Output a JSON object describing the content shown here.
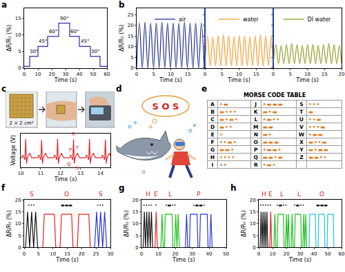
{
  "chart_data": [
    {
      "panel": "a",
      "type": "line",
      "line_style": "step",
      "grid": false,
      "x_label": "Time (s)",
      "y_label": "ΔR/R₀ (%)",
      "xlim": [
        0,
        60
      ],
      "xticks": [
        0,
        10,
        20,
        30,
        40,
        50,
        60
      ],
      "ylim": [
        0,
        18
      ],
      "yticks": [
        0,
        5,
        10,
        15
      ],
      "series": [
        {
          "color": "#2b2bb0",
          "x": [
            0,
            4,
            10,
            17,
            25,
            33,
            40,
            48,
            55,
            60
          ],
          "values": [
            0.5,
            3.5,
            6.5,
            9.5,
            13.5,
            9.5,
            6.5,
            3.5,
            0.5,
            0.5
          ]
        }
      ],
      "annotations": [
        {
          "text": "30°",
          "x": 7,
          "y": 3.5
        },
        {
          "text": "45°",
          "x": 13.5,
          "y": 6.5
        },
        {
          "text": "60°",
          "x": 21,
          "y": 9.5
        },
        {
          "text": "90°",
          "x": 29,
          "y": 13.5
        },
        {
          "text": "60°",
          "x": 36.5,
          "y": 9.5
        },
        {
          "text": "45°",
          "x": 44,
          "y": 6.5
        },
        {
          "text": "30°",
          "x": 51.5,
          "y": 3.5
        }
      ]
    },
    {
      "panel": "b",
      "type": "line",
      "line_style": "smooth",
      "grid": false,
      "legend": "top",
      "x_label": "Time (s)",
      "y_label": "ΔR/R₀ (%)",
      "xlim": [
        0,
        20
      ],
      "ylim": [
        0,
        28
      ],
      "yticks": [
        0,
        5,
        10,
        15,
        20,
        25
      ],
      "series": [
        {
          "name": "air",
          "color": "#1c2a8c",
          "xticks": [
            0,
            5,
            10,
            15
          ],
          "x": [
            0,
            0.8,
            1.65,
            2.45,
            3.3,
            4.1,
            4.95,
            5.75,
            6.6,
            7.4,
            8.25,
            9.05,
            9.9,
            10.7,
            11.55,
            12.35,
            13.2,
            14.0,
            14.85,
            15.65,
            16.5,
            17.3,
            18.15,
            18.95,
            19.8
          ],
          "values": [
            0,
            21,
            0,
            21.5,
            0,
            21,
            0,
            21,
            0,
            21.5,
            0,
            21,
            0,
            21,
            0,
            21,
            0,
            21.5,
            0,
            21,
            0,
            21,
            0,
            21,
            0
          ]
        },
        {
          "name": "water",
          "color": "#f29a2e",
          "xticks": [
            0,
            5,
            10,
            15
          ],
          "x": [
            0,
            0.75,
            1.55,
            2.3,
            3.1,
            3.85,
            4.65,
            5.4,
            6.2,
            6.95,
            7.75,
            8.5,
            9.3,
            10.05,
            10.85,
            11.6,
            12.4,
            13.15,
            13.95,
            14.7,
            15.5,
            16.25,
            17.05,
            17.8,
            18.6,
            19.35,
            20
          ],
          "values": [
            1,
            15,
            1,
            14.5,
            1,
            15,
            1,
            15.5,
            1,
            15,
            1,
            14.5,
            1,
            15,
            1,
            15,
            1,
            14.5,
            1,
            15,
            1,
            15.5,
            1,
            15,
            1,
            14.5,
            1
          ]
        },
        {
          "name": "DI water",
          "color": "#8c9a1e",
          "xticks": [
            0,
            5,
            10,
            15,
            20
          ],
          "x": [
            0,
            0.75,
            1.55,
            2.3,
            3.1,
            3.85,
            4.65,
            5.4,
            6.2,
            6.95,
            7.75,
            8.5,
            9.3,
            10.05,
            10.85,
            11.6,
            12.4,
            13.15,
            13.95,
            14.7,
            15.5,
            16.25,
            17.05,
            17.8,
            18.6,
            19.35,
            20
          ],
          "values": [
            2,
            11,
            2,
            10.5,
            2,
            11,
            2,
            11.5,
            2,
            11,
            2,
            10.5,
            2,
            11,
            2,
            11,
            2,
            10.5,
            2,
            11,
            2,
            11.5,
            2,
            11,
            2,
            10.5,
            2
          ]
        }
      ]
    },
    {
      "panel": "c",
      "type": "line",
      "line_style": "solid",
      "grid": false,
      "tick_labels": "x",
      "x_label": "Time (s)",
      "y_label": "Voltage (V)",
      "xlim": [
        10,
        14.5
      ],
      "xticks": [
        10,
        11,
        12,
        13,
        14
      ],
      "ylim": [
        -0.5,
        1.3
      ],
      "yticks": [],
      "series": [
        {
          "color": "#e0262a",
          "x": [
            10.0,
            10.05,
            10.1,
            10.15,
            10.21,
            10.25,
            10.29,
            10.33,
            10.45,
            10.55,
            10.85,
            10.9,
            10.95,
            11.01,
            11.05,
            11.09,
            11.13,
            11.25,
            11.35,
            11.65,
            11.7,
            11.75,
            11.81,
            11.85,
            11.89,
            11.93,
            12.05,
            12.15,
            12.45,
            12.5,
            12.55,
            12.61,
            12.65,
            12.69,
            12.73,
            12.85,
            12.95,
            13.25,
            13.3,
            13.35,
            13.41,
            13.45,
            13.49,
            13.53,
            13.65,
            13.75,
            14.05,
            14.1,
            14.15,
            14.21,
            14.25,
            14.29,
            14.33,
            14.45,
            14.55
          ],
          "values": [
            0,
            0,
            0.15,
            0,
            -0.1,
            1,
            -0.3,
            0,
            0.25,
            0,
            0,
            0.15,
            0,
            -0.1,
            0.95,
            -0.3,
            0,
            0.25,
            0,
            0,
            0.15,
            0,
            -0.1,
            1,
            -0.3,
            0,
            0.25,
            0,
            0,
            0.15,
            0,
            -0.1,
            0.98,
            -0.3,
            0,
            0.25,
            0,
            0,
            0.15,
            0,
            -0.1,
            1,
            -0.3,
            0,
            0.25,
            0,
            0,
            0.15,
            0,
            -0.1,
            0.96,
            -0.3,
            0,
            0.25,
            0
          ]
        }
      ],
      "annotations": [
        {
          "text": "P",
          "x": 12.5,
          "y": 0.15
        },
        {
          "text": "Q",
          "x": 12.61,
          "y": -0.1
        },
        {
          "text": "R",
          "x": 12.65,
          "y": 0.98
        },
        {
          "text": "S",
          "x": 12.69,
          "y": -0.3
        },
        {
          "text": "T",
          "x": 12.85,
          "y": 0.25
        }
      ]
    },
    {
      "panel": "f",
      "type": "line",
      "line_style": "solid",
      "grid": false,
      "x_label": "Time (s)",
      "y_label": "ΔR/R₀ (%)",
      "xlim": [
        0,
        30
      ],
      "xticks": [
        0,
        5,
        10,
        15,
        20,
        25,
        30
      ],
      "ylim": [
        0,
        20
      ],
      "yticks": [
        0,
        5,
        10,
        15,
        20
      ],
      "series": [
        {
          "name": "S",
          "code": "•••",
          "color": "#111111",
          "x": [
            0.5,
            1.2,
            1.9,
            2.6,
            3.3,
            4.0,
            4.7
          ],
          "values": [
            0,
            15,
            0,
            15,
            0,
            15,
            0
          ]
        },
        {
          "name": "O",
          "code": "▬▬▬",
          "color": "#e8201a",
          "x": [
            6.5,
            7,
            10.5,
            11,
            12.5,
            13,
            16.5,
            17,
            18.5,
            19,
            22.5,
            23
          ],
          "values": [
            0,
            14,
            14,
            0,
            0,
            14,
            14,
            0,
            0,
            14,
            14,
            0
          ]
        },
        {
          "name": "S",
          "code": "•••",
          "color": "#2a35e0",
          "x": [
            24.5,
            25.2,
            25.9,
            26.6,
            27.3,
            28.0,
            28.7
          ],
          "values": [
            0,
            15,
            0,
            15,
            0,
            15,
            0
          ]
        }
      ]
    },
    {
      "panel": "g",
      "type": "line",
      "line_style": "solid",
      "grid": false,
      "x_label": "Time (s)",
      "y_label": "ΔR/R₀ (%)",
      "xlim": [
        0,
        50
      ],
      "xticks": [
        0,
        10,
        20,
        30,
        40,
        50
      ],
      "ylim": [
        0,
        20
      ],
      "yticks": [
        0,
        5,
        10,
        15,
        20
      ],
      "series": [
        {
          "name": "H",
          "code": "••••",
          "color": "#111111",
          "x": [
            1,
            1.7,
            2.4,
            3.1,
            3.8,
            4.5,
            5.2,
            5.9,
            6.6
          ],
          "values": [
            0,
            15,
            0,
            15,
            0,
            15,
            0,
            15,
            0
          ]
        },
        {
          "name": "E",
          "code": "•",
          "color": "#e8201a",
          "x": [
            8,
            8.7,
            9.4
          ],
          "values": [
            0,
            15,
            0
          ]
        },
        {
          "name": "L",
          "code": "•▬••",
          "color": "#1fbf1f",
          "x": [
            11.5,
            12.2,
            12.9,
            13.6,
            14.1,
            18.1,
            18.6,
            19.6,
            20.3,
            21.0,
            21.7,
            22.4
          ],
          "values": [
            0,
            14,
            0,
            0,
            14,
            14,
            0,
            0,
            14,
            0,
            14,
            0
          ]
        },
        {
          "name": "P",
          "code": "•▬▬•",
          "color": "#2a35e0",
          "x": [
            26,
            26.7,
            27.4,
            28.4,
            28.9,
            32.9,
            33.4,
            34.4,
            34.9,
            38.9,
            39.4,
            40.4,
            41.1,
            41.8
          ],
          "values": [
            0,
            14,
            0,
            0,
            14,
            14,
            0,
            0,
            14,
            14,
            0,
            0,
            14,
            0
          ]
        }
      ]
    },
    {
      "panel": "h",
      "type": "line",
      "line_style": "solid",
      "grid": false,
      "x_label": "Time (s)",
      "y_label": "ΔR/R₀ (%)",
      "xlim": [
        0,
        60
      ],
      "xticks": [
        0,
        10,
        20,
        30,
        40,
        50,
        60
      ],
      "ylim": [
        0,
        20
      ],
      "yticks": [
        0,
        5,
        10,
        15,
        20
      ],
      "series": [
        {
          "name": "H",
          "code": "••••",
          "color": "#111111",
          "x": [
            1,
            1.7,
            2.4,
            3.1,
            3.8,
            4.5,
            5.2,
            5.9,
            6.6
          ],
          "values": [
            0,
            15,
            0,
            15,
            0,
            15,
            0,
            15,
            0
          ]
        },
        {
          "name": "E",
          "code": "•",
          "color": "#e8201a",
          "x": [
            8,
            8.7,
            9.4
          ],
          "values": [
            0,
            15,
            0
          ]
        },
        {
          "name": "L",
          "code": "•▬••",
          "color": "#1fbf1f",
          "x": [
            11,
            11.7,
            12.4,
            13.4,
            13.9,
            17.9,
            18.4,
            19.4,
            20.1,
            20.8,
            21.5,
            22.2
          ],
          "values": [
            0,
            14,
            0,
            0,
            14,
            14,
            0,
            0,
            14,
            0,
            14,
            0
          ]
        },
        {
          "name": "L",
          "code": "•▬••",
          "color": "#1fbf1f",
          "x": [
            23.5,
            24.2,
            24.9,
            25.9,
            26.4,
            30.4,
            30.9,
            31.9,
            32.6,
            33.3,
            34.0,
            34.7
          ],
          "values": [
            0,
            14,
            0,
            0,
            14,
            14,
            0,
            0,
            14,
            0,
            14,
            0
          ]
        },
        {
          "name": "O",
          "code": "▬▬▬",
          "color": "#1cc4dc",
          "x": [
            36.5,
            37,
            41,
            41.5,
            43,
            43.5,
            47.5,
            48,
            49.5,
            50,
            54,
            54.5
          ],
          "values": [
            0,
            14,
            14,
            0,
            0,
            14,
            14,
            0,
            0,
            14,
            14,
            0
          ]
        }
      ]
    }
  ],
  "photos": {
    "label": "2 × 2 cm²"
  },
  "illustration": {
    "panel": "d",
    "speech": "S O S"
  },
  "table": {
    "panel": "e",
    "title": "MORSE CODE TABLE",
    "entries": [
      {
        "letter": "A",
        "code": "•▬"
      },
      {
        "letter": "B",
        "code": "▬•••"
      },
      {
        "letter": "C",
        "code": "▬•▬•"
      },
      {
        "letter": "D",
        "code": "▬••"
      },
      {
        "letter": "E",
        "code": "•"
      },
      {
        "letter": "F",
        "code": "••▬•"
      },
      {
        "letter": "G",
        "code": "▬▬•"
      },
      {
        "letter": "H",
        "code": "••••"
      },
      {
        "letter": "I",
        "code": "••"
      },
      {
        "letter": "J",
        "code": "•▬▬▬"
      },
      {
        "letter": "K",
        "code": "▬•▬"
      },
      {
        "letter": "L",
        "code": "•▬••"
      },
      {
        "letter": "M",
        "code": "▬▬"
      },
      {
        "letter": "N",
        "code": "▬•"
      },
      {
        "letter": "O",
        "code": "▬▬▬"
      },
      {
        "letter": "P",
        "code": "•▬▬•"
      },
      {
        "letter": "Q",
        "code": "▬▬•▬"
      },
      {
        "letter": "R",
        "code": "•▬•"
      },
      {
        "letter": "S",
        "code": "•••"
      },
      {
        "letter": "T",
        "code": "▬"
      },
      {
        "letter": "U",
        "code": "••▬"
      },
      {
        "letter": "V",
        "code": "•••▬"
      },
      {
        "letter": "W",
        "code": "•▬▬"
      },
      {
        "letter": "X",
        "code": "▬••▬"
      },
      {
        "letter": "Y",
        "code": "▬•▬▬"
      },
      {
        "letter": "Z",
        "code": "▬▬••"
      }
    ]
  }
}
